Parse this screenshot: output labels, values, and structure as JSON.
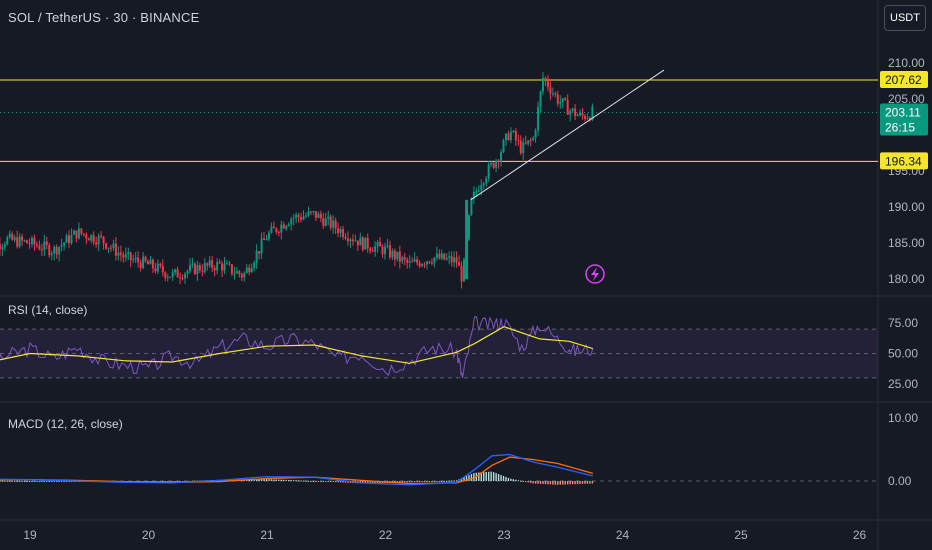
{
  "header": {
    "symbol_title": "SOL / TetherUS · 30 · BINANCE",
    "currency_button": "USDT"
  },
  "price_pane": {
    "y_ticks": [
      "210.00",
      "205.00",
      "195.00",
      "190.00",
      "185.00",
      "180.00"
    ],
    "resistance_level": "207.62",
    "support_level": "196.34",
    "current_price": "203.11",
    "countdown": "26:15",
    "alert_icon": "lightning-icon"
  },
  "rsi_pane": {
    "label": "RSI (14, close)",
    "y_ticks": [
      "75.00",
      "50.00",
      "25.00"
    ]
  },
  "macd_pane": {
    "label": "MACD (12, 26, close)",
    "y_ticks": [
      "10.00",
      "0.00"
    ]
  },
  "time_axis": {
    "labels": [
      "19",
      "20",
      "21",
      "22",
      "23",
      "24",
      "25",
      "26"
    ]
  },
  "colors": {
    "background": "#161a25",
    "up_candle": "#089981",
    "down_candle": "#f23645",
    "level_line": "#f5e52b",
    "rsi_line": "#7e57c2",
    "rsi_ma": "#f5e52b",
    "macd_line": "#2962ff",
    "signal_line": "#ff6d00"
  },
  "chart_data": {
    "type": "candlestick",
    "symbol": "SOL / TetherUS",
    "interval": "30",
    "exchange": "BINANCE",
    "x_labels": [
      "19",
      "20",
      "21",
      "22",
      "23",
      "24",
      "25",
      "26"
    ],
    "price_close_path": [
      [
        18.6,
        183.5
      ],
      [
        18.8,
        185.5
      ],
      [
        19.0,
        185.0
      ],
      [
        19.2,
        184.0
      ],
      [
        19.4,
        186.5
      ],
      [
        19.6,
        185.5
      ],
      [
        19.8,
        183.0
      ],
      [
        20.0,
        182.0
      ],
      [
        20.2,
        180.5
      ],
      [
        20.4,
        181.5
      ],
      [
        20.6,
        182.0
      ],
      [
        20.8,
        180.5
      ],
      [
        21.0,
        186.0
      ],
      [
        21.2,
        188.5
      ],
      [
        21.4,
        189.0
      ],
      [
        21.6,
        187.0
      ],
      [
        21.8,
        185.0
      ],
      [
        22.0,
        184.0
      ],
      [
        22.2,
        182.0
      ],
      [
        22.4,
        183.0
      ],
      [
        22.6,
        182.5
      ],
      [
        22.65,
        180.0
      ],
      [
        22.72,
        190.5
      ],
      [
        22.8,
        193.5
      ],
      [
        22.95,
        197.0
      ],
      [
        23.05,
        200.5
      ],
      [
        23.15,
        198.0
      ],
      [
        23.25,
        199.5
      ],
      [
        23.33,
        208.0
      ],
      [
        23.45,
        205.0
      ],
      [
        23.55,
        203.5
      ],
      [
        23.65,
        202.5
      ],
      [
        23.75,
        203.11
      ]
    ],
    "resistance": 207.62,
    "support": 196.34,
    "current_price": 203.11,
    "trendline": [
      [
        22.72,
        191.0
      ],
      [
        24.35,
        209.0
      ]
    ],
    "y_range": [
      178.5,
      211.5
    ],
    "rsi": {
      "range": [
        20,
        80
      ],
      "bands": [
        30,
        70
      ],
      "values": [
        [
          18.6,
          30
        ],
        [
          18.8,
          48
        ],
        [
          19.0,
          54
        ],
        [
          19.2,
          46
        ],
        [
          19.4,
          55
        ],
        [
          19.6,
          44
        ],
        [
          19.8,
          40
        ],
        [
          20.0,
          38
        ],
        [
          20.2,
          48
        ],
        [
          20.4,
          42
        ],
        [
          20.6,
          55
        ],
        [
          20.8,
          62
        ],
        [
          21.0,
          56
        ],
        [
          21.2,
          62
        ],
        [
          21.4,
          58
        ],
        [
          21.6,
          46
        ],
        [
          21.8,
          50
        ],
        [
          22.0,
          37
        ],
        [
          22.2,
          44
        ],
        [
          22.4,
          55
        ],
        [
          22.6,
          52
        ],
        [
          22.65,
          30
        ],
        [
          22.75,
          75
        ],
        [
          22.9,
          73
        ],
        [
          23.0,
          77
        ],
        [
          23.15,
          55
        ],
        [
          23.3,
          74
        ],
        [
          23.5,
          58
        ],
        [
          23.6,
          52
        ],
        [
          23.75,
          54
        ]
      ],
      "ma": [
        [
          18.6,
          42
        ],
        [
          19.0,
          50
        ],
        [
          19.4,
          48
        ],
        [
          19.8,
          44
        ],
        [
          20.2,
          43
        ],
        [
          20.6,
          50
        ],
        [
          21.0,
          56
        ],
        [
          21.4,
          57
        ],
        [
          21.8,
          48
        ],
        [
          22.2,
          42
        ],
        [
          22.6,
          51
        ],
        [
          22.75,
          58
        ],
        [
          23.0,
          72
        ],
        [
          23.3,
          62
        ],
        [
          23.55,
          60
        ],
        [
          23.75,
          54
        ]
      ]
    },
    "macd": {
      "range": [
        -3,
        11
      ],
      "zero_line": 0,
      "macd_line": [
        [
          18.6,
          0.3
        ],
        [
          19.0,
          0.2
        ],
        [
          19.4,
          0.0
        ],
        [
          19.8,
          -0.2
        ],
        [
          20.2,
          -0.3
        ],
        [
          20.6,
          0.1
        ],
        [
          21.0,
          0.7
        ],
        [
          21.4,
          0.6
        ],
        [
          21.8,
          -0.3
        ],
        [
          22.2,
          -0.6
        ],
        [
          22.6,
          -0.2
        ],
        [
          22.75,
          1.8
        ],
        [
          22.9,
          4.0
        ],
        [
          23.05,
          4.2
        ],
        [
          23.25,
          3.0
        ],
        [
          23.45,
          2.2
        ],
        [
          23.75,
          0.8
        ]
      ],
      "signal_line": [
        [
          18.6,
          0.2
        ],
        [
          19.0,
          0.2
        ],
        [
          19.4,
          0.1
        ],
        [
          19.8,
          -0.1
        ],
        [
          20.2,
          -0.2
        ],
        [
          20.6,
          -0.1
        ],
        [
          21.0,
          0.4
        ],
        [
          21.4,
          0.6
        ],
        [
          21.8,
          0.1
        ],
        [
          22.2,
          -0.4
        ],
        [
          22.6,
          -0.3
        ],
        [
          22.75,
          0.5
        ],
        [
          22.9,
          2.5
        ],
        [
          23.05,
          3.8
        ],
        [
          23.25,
          3.4
        ],
        [
          23.45,
          2.8
        ],
        [
          23.75,
          1.2
        ]
      ]
    }
  }
}
